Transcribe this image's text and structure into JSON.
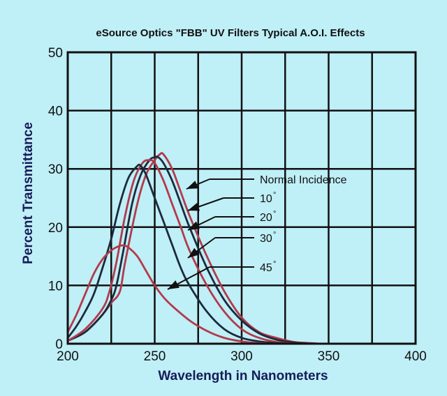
{
  "chart_data": {
    "type": "line",
    "title": "eSource Optics \"FBB\" UV Filters Typical A.O.I. Effects",
    "xlabel": "Wavelength in Nanometers",
    "ylabel": "Percent Transmittance",
    "xlim": [
      200,
      400
    ],
    "ylim": [
      0,
      50
    ],
    "xticks": [
      "200",
      "250",
      "300",
      "350",
      "400"
    ],
    "yticks": [
      "0",
      "10",
      "20",
      "30",
      "40",
      "50"
    ],
    "grid": true,
    "series": [
      {
        "name": "Normal Incidence",
        "color": "#b23a4a",
        "x": [
          200,
          210,
          220,
          225,
          230,
          233,
          240,
          245,
          250,
          253,
          255,
          260,
          265,
          270,
          280,
          290,
          300,
          310,
          320,
          330,
          340,
          345
        ],
        "y": [
          0.5,
          2,
          5,
          7,
          9,
          14,
          24,
          29,
          31.5,
          32.5,
          32.5,
          30,
          26,
          22,
          15,
          9,
          4.5,
          2,
          1,
          0.3,
          0.1,
          0
        ]
      },
      {
        "name": "10°",
        "color": "#1c2a3c",
        "x": [
          200,
          210,
          220,
          225,
          228,
          232,
          237,
          242,
          247,
          250,
          252,
          255,
          260,
          265,
          270,
          280,
          290,
          300,
          310,
          320,
          330,
          340
        ],
        "y": [
          0.5,
          2,
          5,
          7.5,
          10,
          16,
          24,
          29,
          31.5,
          32,
          32,
          31,
          28,
          24,
          20,
          13,
          7.5,
          4,
          1.8,
          0.7,
          0.2,
          0
        ]
      },
      {
        "name": "20°",
        "color": "#b23a4a",
        "x": [
          200,
          210,
          220,
          224,
          228,
          233,
          238,
          243,
          247,
          250,
          255,
          260,
          265,
          270,
          280,
          290,
          300,
          310,
          320,
          330
        ],
        "y": [
          0.5,
          2.5,
          6,
          9,
          14,
          22,
          28,
          31,
          31.5,
          31,
          28,
          24,
          20,
          16,
          10,
          5.5,
          2.5,
          1,
          0.3,
          0
        ]
      },
      {
        "name": "30°",
        "color": "#1c2a3c",
        "x": [
          200,
          205,
          210,
          215,
          220,
          225,
          230,
          235,
          240,
          242,
          245,
          250,
          255,
          260,
          265,
          270,
          280,
          290,
          300,
          310,
          320,
          330
        ],
        "y": [
          1,
          3,
          5.5,
          8.5,
          13,
          18,
          24,
          28.5,
          30.5,
          30.5,
          29,
          25,
          21,
          17,
          13,
          10,
          5.5,
          2.5,
          1,
          0.4,
          0.1,
          0
        ]
      },
      {
        "name": "45°",
        "color": "#b23a4a",
        "x": [
          200,
          205,
          210,
          215,
          220,
          225,
          230,
          233,
          235,
          240,
          245,
          250,
          255,
          260,
          270,
          280,
          290,
          300,
          310,
          320
        ],
        "y": [
          2,
          5,
          8.5,
          12,
          14.5,
          16,
          16.8,
          16.8,
          16.5,
          15,
          12.5,
          10,
          8,
          6.5,
          4,
          2.2,
          1,
          0.4,
          0.1,
          0
        ]
      }
    ],
    "annotations": [
      {
        "label": "Normal Incidence",
        "degree": false
      },
      {
        "label": "10",
        "degree": true
      },
      {
        "label": "20",
        "degree": true
      },
      {
        "label": "30",
        "degree": true
      },
      {
        "label": "45",
        "degree": true
      }
    ]
  }
}
